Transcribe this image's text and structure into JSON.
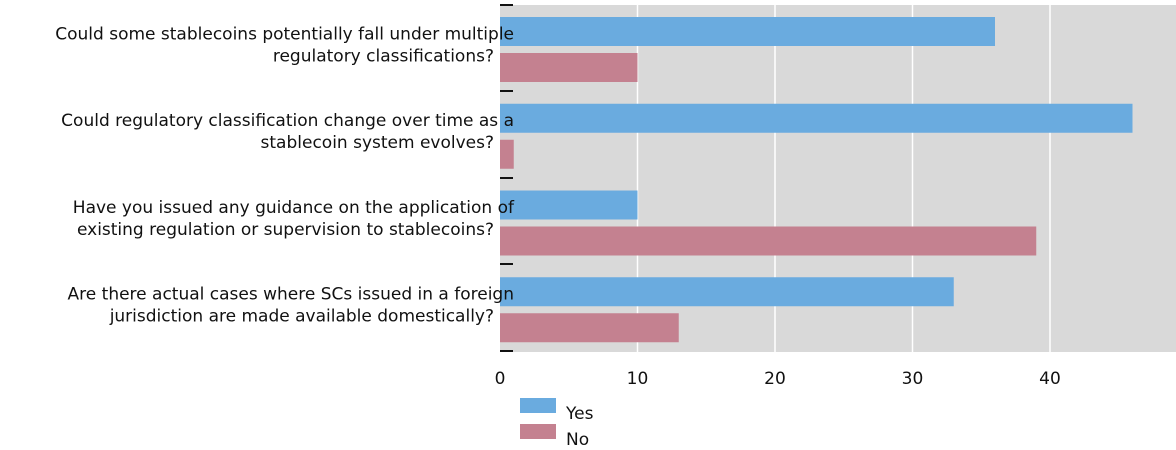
{
  "chart_data": {
    "type": "bar",
    "orientation": "horizontal",
    "categories": [
      [
        "Could some stablecoins potentially fall under multiple",
        "regulatory classifications?"
      ],
      [
        "Could regulatory classification change over time as a",
        "stablecoin system evolves?"
      ],
      [
        "Have you issued any guidance on the application of",
        "existing regulation or supervision to stablecoins?"
      ],
      [
        "Are there actual cases where SCs issued in a foreign",
        "jurisdiction are made available domestically?"
      ]
    ],
    "series": [
      {
        "name": "Yes",
        "values": [
          36,
          46,
          10,
          33
        ]
      },
      {
        "name": "No",
        "values": [
          10,
          1,
          39,
          13
        ]
      }
    ],
    "x_ticks": [
      "0",
      "10",
      "20",
      "30",
      "40"
    ],
    "xlim": [
      0,
      49
    ],
    "grid": true,
    "legend_position": "bottom-center",
    "colors": {
      "Yes": "#6aabdf",
      "No": "#c48190",
      "plot_background": "#d9d9d9",
      "grid": "#ffffff",
      "tick_marks": "#111111"
    }
  }
}
